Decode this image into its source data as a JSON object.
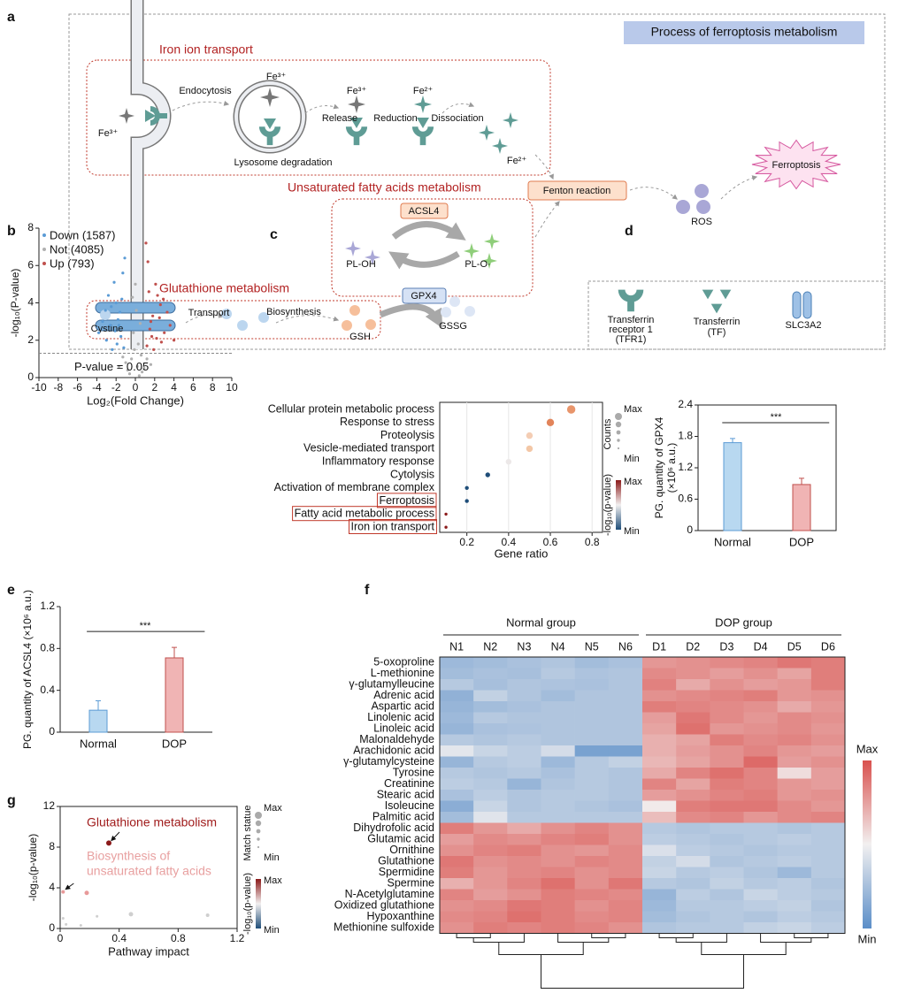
{
  "panel_labels": [
    "a",
    "b",
    "c",
    "d",
    "e",
    "f",
    "g"
  ],
  "diagram": {
    "title": "Process of ferroptosis metabolism",
    "labels": [
      "Iron ion transport",
      "Unsaturated fatty acids metabolism",
      "Glutathione metabolism",
      "Endocytosis",
      "Fe³⁺",
      "Fe³⁺",
      "Lysosome degradation",
      "Release",
      "Fe³⁺",
      "Reduction",
      "Fe²⁺",
      "Dissociation",
      "Fe²⁺",
      "Fenton reaction",
      "ROS",
      "Ferroptosis",
      "ACSL4",
      "PL-OH",
      "PL-O·",
      "GPX4",
      "Transport",
      "Biosynthesis",
      "Cystine",
      "GSH",
      "GSSG",
      "Transferrin",
      "receptor 1",
      "(TFR1)",
      "Transferrin",
      "(TF)",
      "SLC3A2"
    ]
  },
  "chart_data": [
    {
      "type": "scatter",
      "ylabel": "-log₁₀(P-value)",
      "xlabel": "Log₂(Fold Change)",
      "xlim": [
        -10,
        10
      ],
      "xticks": [
        -10,
        -8,
        -6,
        -4,
        -2,
        0,
        2,
        4,
        6,
        8,
        10
      ],
      "ylim": [
        0,
        8
      ],
      "yticks": [
        0,
        2,
        4,
        6,
        8
      ],
      "threshold": 1.3,
      "threshold_label": "P-value = 0.05",
      "series": [
        {
          "name": "Down (1587)",
          "color": "#5b9bd5",
          "x": [
            -1.2,
            -1.5,
            -1.8,
            -2.1,
            -2.5,
            -1.4,
            -3.0,
            -2.2,
            -1.6,
            -2.8,
            -3.4,
            -1.9,
            -2.6,
            -1.3,
            -3.8,
            -2.0,
            -1.1,
            -2.4,
            -1.7,
            -3.1
          ],
          "values": [
            1.6,
            2.2,
            3.1,
            2.5,
            3.8,
            4.2,
            2.0,
            5.1,
            3.5,
            4.4,
            3.0,
            1.8,
            2.8,
            5.6,
            2.4,
            4.0,
            6.4,
            1.5,
            2.8,
            3.6
          ]
        },
        {
          "name": "Not (4085)",
          "color": "#b0b0b0",
          "x": [
            -0.8,
            -0.4,
            0.2,
            0.6,
            -0.2,
            0.1,
            0.3,
            -0.6,
            0.9,
            -1.0,
            0.5,
            -0.3,
            1.6,
            -1.7,
            0.0,
            0.4,
            -1.3,
            1.2,
            -0.1,
            0.7
          ],
          "values": [
            0.4,
            1.0,
            0.6,
            1.2,
            2.4,
            3.6,
            1.8,
            0.2,
            0.5,
            0.8,
            2.9,
            4.3,
            0.7,
            0.6,
            5.0,
            0.1,
            1.1,
            1.0,
            1.5,
            0.3
          ]
        },
        {
          "name": "Up (793)",
          "color": "#c0504d",
          "x": [
            1.2,
            1.5,
            1.8,
            2.2,
            2.6,
            1.4,
            3.0,
            2.1,
            1.6,
            2.9,
            3.6,
            1.9,
            2.5,
            1.3,
            4.0,
            2.3,
            1.1,
            2.7,
            1.7,
            3.3
          ],
          "values": [
            1.7,
            2.6,
            3.3,
            2.1,
            3.9,
            4.6,
            2.4,
            5.0,
            3.0,
            4.2,
            2.8,
            1.5,
            3.2,
            6.2,
            2.0,
            4.4,
            7.2,
            1.9,
            2.2,
            3.5
          ]
        }
      ]
    },
    {
      "type": "dot",
      "xlabel": "Gene ratio",
      "categories": [
        "Cellular protein metabolic process",
        "Response to stress",
        "Proteolysis",
        "Vesicle-mediated transport",
        "Inflammatory response",
        "Cytolysis",
        "Activation of membrane complex",
        "Ferroptosis",
        "Fatty acid metabolic process",
        "Iron ion transport"
      ],
      "values": [
        0.7,
        0.6,
        0.5,
        0.5,
        0.4,
        0.3,
        0.2,
        0.2,
        0.1,
        0.1
      ],
      "sizes": [
        7,
        6,
        5,
        5,
        4,
        3,
        2,
        2,
        1,
        1
      ],
      "colors": [
        "#e8956b",
        "#e2845a",
        "#f4cdb4",
        "#f3c7a6",
        "#ece8e8",
        "#1f4e79",
        "#1f4e79",
        "#1f4e79",
        "#8b1a1a",
        "#8b1a1a"
      ],
      "highlight": [
        7,
        8,
        9
      ],
      "xlim": [
        0.07,
        0.85
      ],
      "xticks": [
        0.2,
        0.4,
        0.6,
        0.8
      ],
      "grid": true,
      "size_legend": {
        "title": "Counts",
        "max": "Max",
        "min": "Min"
      },
      "color_legend": {
        "title": "-log₁₀(p-value)",
        "max": "Max",
        "min": "Min",
        "colors": [
          "#8b1a1a",
          "#f2f0f0",
          "#1f4e79"
        ]
      }
    },
    {
      "type": "bar",
      "frame": "box",
      "categories": [
        "Normal",
        "DOP"
      ],
      "values": [
        1.68,
        0.88
      ],
      "errors": [
        0.08,
        0.12
      ],
      "colors": [
        "#b8d8f0",
        "#f0b4b4"
      ],
      "edge_colors": [
        "#5b9bd5",
        "#c0504d"
      ],
      "ylim": [
        0,
        2.4
      ],
      "yticks": [
        0,
        0.6,
        1.2,
        1.8,
        2.4
      ],
      "ylabel": [
        "PG. quantity of GPX4",
        "(×10⁶ a.u.)"
      ],
      "significance": "***"
    },
    {
      "type": "bar",
      "frame": "axes",
      "categories": [
        "Normal",
        "DOP"
      ],
      "values": [
        0.21,
        0.71
      ],
      "errors": [
        0.09,
        0.1
      ],
      "colors": [
        "#b8d8f0",
        "#f0b4b4"
      ],
      "edge_colors": [
        "#5b9bd5",
        "#c0504d"
      ],
      "ylim": [
        0,
        1.2
      ],
      "yticks": [
        0,
        0.4,
        0.8,
        1.2
      ],
      "ylabel": [
        "PG. quantity of ACSL4 (×10⁶ a.u.)"
      ],
      "significance": "***"
    },
    {
      "type": "heatmap",
      "groups": [
        {
          "name": "Normal group",
          "count": 6
        },
        {
          "name": "DOP group",
          "count": 6
        }
      ],
      "columns": [
        "N1",
        "N2",
        "N3",
        "N4",
        "N5",
        "N6",
        "D1",
        "D2",
        "D3",
        "D4",
        "D5",
        "D6"
      ],
      "rows": [
        "5-oxoproline",
        "L-methionine",
        "γ-glutamylleucine",
        "Adrenic acid",
        "Aspartic acid",
        "Linolenic acid",
        "Linoleic acid",
        "Malonaldehyde",
        "Arachidonic acid",
        "γ-glutamylcysteine",
        "Tyrosine",
        "Creatinine",
        "Stearic acid",
        "Isoleucine",
        "Palmitic acid",
        "Dihydrofolic acid",
        "Glutamic acid",
        "Ornithine",
        "Glutathione",
        "Spermidine",
        "Spermine",
        "N-Acetylglutamine",
        "Oxidized glutathione",
        "Hypoxanthine",
        "Methionine sulfoxide"
      ],
      "values": [
        [
          0.22,
          0.24,
          0.26,
          0.28,
          0.24,
          0.26,
          0.78,
          0.8,
          0.82,
          0.84,
          0.88,
          0.86
        ],
        [
          0.24,
          0.26,
          0.25,
          0.3,
          0.27,
          0.28,
          0.82,
          0.8,
          0.76,
          0.8,
          0.74,
          0.86
        ],
        [
          0.3,
          0.25,
          0.28,
          0.27,
          0.26,
          0.28,
          0.85,
          0.72,
          0.8,
          0.76,
          0.78,
          0.86
        ],
        [
          0.18,
          0.34,
          0.28,
          0.24,
          0.28,
          0.28,
          0.8,
          0.82,
          0.84,
          0.86,
          0.78,
          0.8
        ],
        [
          0.2,
          0.24,
          0.26,
          0.28,
          0.28,
          0.28,
          0.86,
          0.84,
          0.82,
          0.8,
          0.72,
          0.78
        ],
        [
          0.22,
          0.3,
          0.28,
          0.28,
          0.28,
          0.28,
          0.76,
          0.88,
          0.82,
          0.78,
          0.82,
          0.8
        ],
        [
          0.2,
          0.26,
          0.27,
          0.28,
          0.28,
          0.28,
          0.74,
          0.9,
          0.78,
          0.8,
          0.82,
          0.78
        ],
        [
          0.3,
          0.28,
          0.3,
          0.28,
          0.28,
          0.28,
          0.7,
          0.74,
          0.86,
          0.82,
          0.84,
          0.8
        ],
        [
          0.45,
          0.36,
          0.32,
          0.4,
          0.1,
          0.1,
          0.7,
          0.76,
          0.8,
          0.84,
          0.78,
          0.76
        ],
        [
          0.2,
          0.3,
          0.32,
          0.22,
          0.3,
          0.34,
          0.68,
          0.74,
          0.8,
          0.92,
          0.76,
          0.8
        ],
        [
          0.3,
          0.28,
          0.3,
          0.26,
          0.3,
          0.28,
          0.72,
          0.84,
          0.9,
          0.84,
          0.56,
          0.76
        ],
        [
          0.32,
          0.3,
          0.2,
          0.28,
          0.3,
          0.28,
          0.84,
          0.74,
          0.86,
          0.84,
          0.78,
          0.76
        ],
        [
          0.26,
          0.32,
          0.28,
          0.3,
          0.3,
          0.28,
          0.76,
          0.8,
          0.84,
          0.86,
          0.78,
          0.8
        ],
        [
          0.16,
          0.36,
          0.28,
          0.3,
          0.28,
          0.26,
          0.52,
          0.86,
          0.88,
          0.88,
          0.82,
          0.78
        ],
        [
          0.24,
          0.44,
          0.3,
          0.3,
          0.3,
          0.3,
          0.66,
          0.82,
          0.84,
          0.78,
          0.82,
          0.84
        ],
        [
          0.86,
          0.78,
          0.72,
          0.8,
          0.84,
          0.8,
          0.3,
          0.28,
          0.3,
          0.3,
          0.28,
          0.3
        ],
        [
          0.76,
          0.82,
          0.8,
          0.84,
          0.86,
          0.8,
          0.32,
          0.3,
          0.28,
          0.3,
          0.32,
          0.3
        ],
        [
          0.8,
          0.84,
          0.86,
          0.8,
          0.78,
          0.82,
          0.42,
          0.32,
          0.3,
          0.28,
          0.3,
          0.3
        ],
        [
          0.88,
          0.8,
          0.82,
          0.8,
          0.84,
          0.82,
          0.34,
          0.4,
          0.28,
          0.3,
          0.32,
          0.3
        ],
        [
          0.86,
          0.78,
          0.82,
          0.84,
          0.8,
          0.82,
          0.36,
          0.3,
          0.32,
          0.28,
          0.22,
          0.3
        ],
        [
          0.7,
          0.78,
          0.84,
          0.9,
          0.8,
          0.88,
          0.3,
          0.28,
          0.34,
          0.3,
          0.32,
          0.28
        ],
        [
          0.84,
          0.76,
          0.8,
          0.86,
          0.84,
          0.82,
          0.2,
          0.32,
          0.28,
          0.36,
          0.32,
          0.3
        ],
        [
          0.8,
          0.82,
          0.88,
          0.86,
          0.8,
          0.84,
          0.22,
          0.3,
          0.3,
          0.32,
          0.34,
          0.28
        ],
        [
          0.82,
          0.84,
          0.9,
          0.86,
          0.82,
          0.84,
          0.24,
          0.28,
          0.3,
          0.28,
          0.32,
          0.3
        ],
        [
          0.8,
          0.86,
          0.84,
          0.86,
          0.84,
          0.8,
          0.28,
          0.3,
          0.3,
          0.34,
          0.36,
          0.32
        ]
      ],
      "colorscale": [
        "#5b8ec8",
        "#f2f0f0",
        "#d9514e"
      ],
      "colorbar": {
        "max": "Max",
        "min": "Min"
      }
    },
    {
      "type": "bubble",
      "frame": "box",
      "xlabel": "Pathway impact",
      "ylabel": "-log₁₀(p-value)",
      "xlim": [
        0,
        1.2
      ],
      "xticks": [
        0,
        0.4,
        0.8,
        1.2
      ],
      "ylim": [
        0,
        12
      ],
      "yticks": [
        0,
        4,
        8,
        12
      ],
      "x": [
        0.33,
        0.02,
        0.18,
        0.25,
        0.48,
        1.0,
        0.02,
        0.04,
        0.14
      ],
      "values": [
        8.4,
        3.6,
        3.5,
        1.2,
        1.4,
        1.3,
        1.0,
        0.4,
        0.3
      ],
      "sizes": [
        3,
        2,
        2.5,
        1.5,
        2.5,
        2,
        1.5,
        1.5,
        1.5
      ],
      "colors": [
        "#8b1a1a",
        "#e89a9a",
        "#e89a9a",
        "#cfcfcf",
        "#cfcfcf",
        "#cfcfcf",
        "#cfcfcf",
        "#cfcfcf",
        "#cfcfcf"
      ],
      "annotations": [
        {
          "text": [
            "Glutathione metabolism"
          ],
          "point": 0,
          "color": "#a01c1c"
        },
        {
          "text": [
            "Biosynthesis of",
            "unsaturated fatty acids"
          ],
          "point": 1,
          "color": "#e8a0a0"
        }
      ],
      "size_legend": {
        "title": "Match statue",
        "max": "Max",
        "min": "Min"
      },
      "color_legend": {
        "title": "-log₁₀(p-value)",
        "max": "Max",
        "min": "Min",
        "colors": [
          "#8b1a1a",
          "#f2f0f0",
          "#1f4e79"
        ]
      }
    }
  ]
}
